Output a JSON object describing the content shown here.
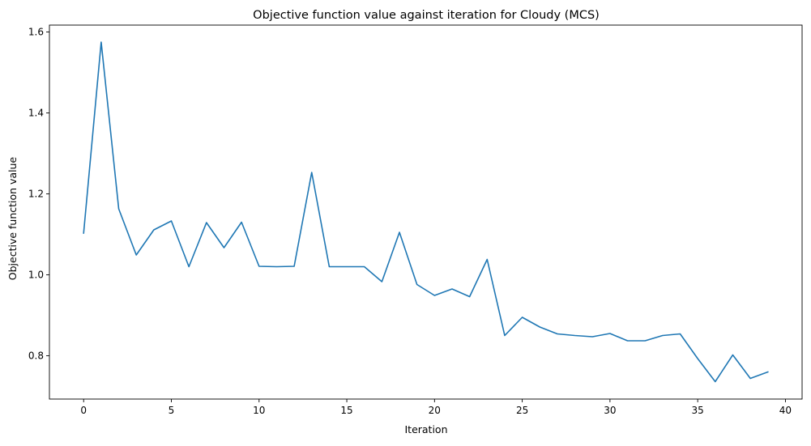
{
  "chart_data": {
    "type": "line",
    "title": "Objective function value against iteration for Cloudy (MCS)",
    "xlabel": "Iteration",
    "ylabel": "Objective function value",
    "xlim": [
      -1.95,
      40.95
    ],
    "ylim": [
      0.693,
      1.617
    ],
    "xticks": [
      0,
      5,
      10,
      15,
      20,
      25,
      30,
      35,
      40
    ],
    "xtick_labels": [
      "0",
      "5",
      "10",
      "15",
      "20",
      "25",
      "30",
      "35",
      "40"
    ],
    "yticks": [
      0.8,
      1.0,
      1.2,
      1.4,
      1.6
    ],
    "ytick_labels": [
      "0.8",
      "1.0",
      "1.2",
      "1.4",
      "1.6"
    ],
    "grid": false,
    "legend": "none",
    "series": [
      {
        "color": "#1f77b4",
        "x": [
          0,
          1,
          2,
          3,
          4,
          5,
          6,
          7,
          8,
          9,
          10,
          11,
          12,
          13,
          14,
          15,
          16,
          17,
          18,
          19,
          20,
          21,
          22,
          23,
          24,
          25,
          26,
          27,
          28,
          29,
          30,
          31,
          32,
          33,
          34,
          35,
          36,
          37,
          38,
          39
        ],
        "y": [
          1.103,
          1.575,
          1.163,
          1.049,
          1.111,
          1.133,
          1.02,
          1.129,
          1.067,
          1.13,
          1.021,
          1.02,
          1.021,
          1.253,
          1.02,
          1.02,
          1.02,
          0.983,
          1.105,
          0.976,
          0.949,
          0.965,
          0.946,
          1.038,
          0.85,
          0.895,
          0.871,
          0.854,
          0.85,
          0.847,
          0.855,
          0.837,
          0.837,
          0.85,
          0.854,
          0.793,
          0.736,
          0.802,
          0.744,
          0.76
        ]
      }
    ]
  }
}
